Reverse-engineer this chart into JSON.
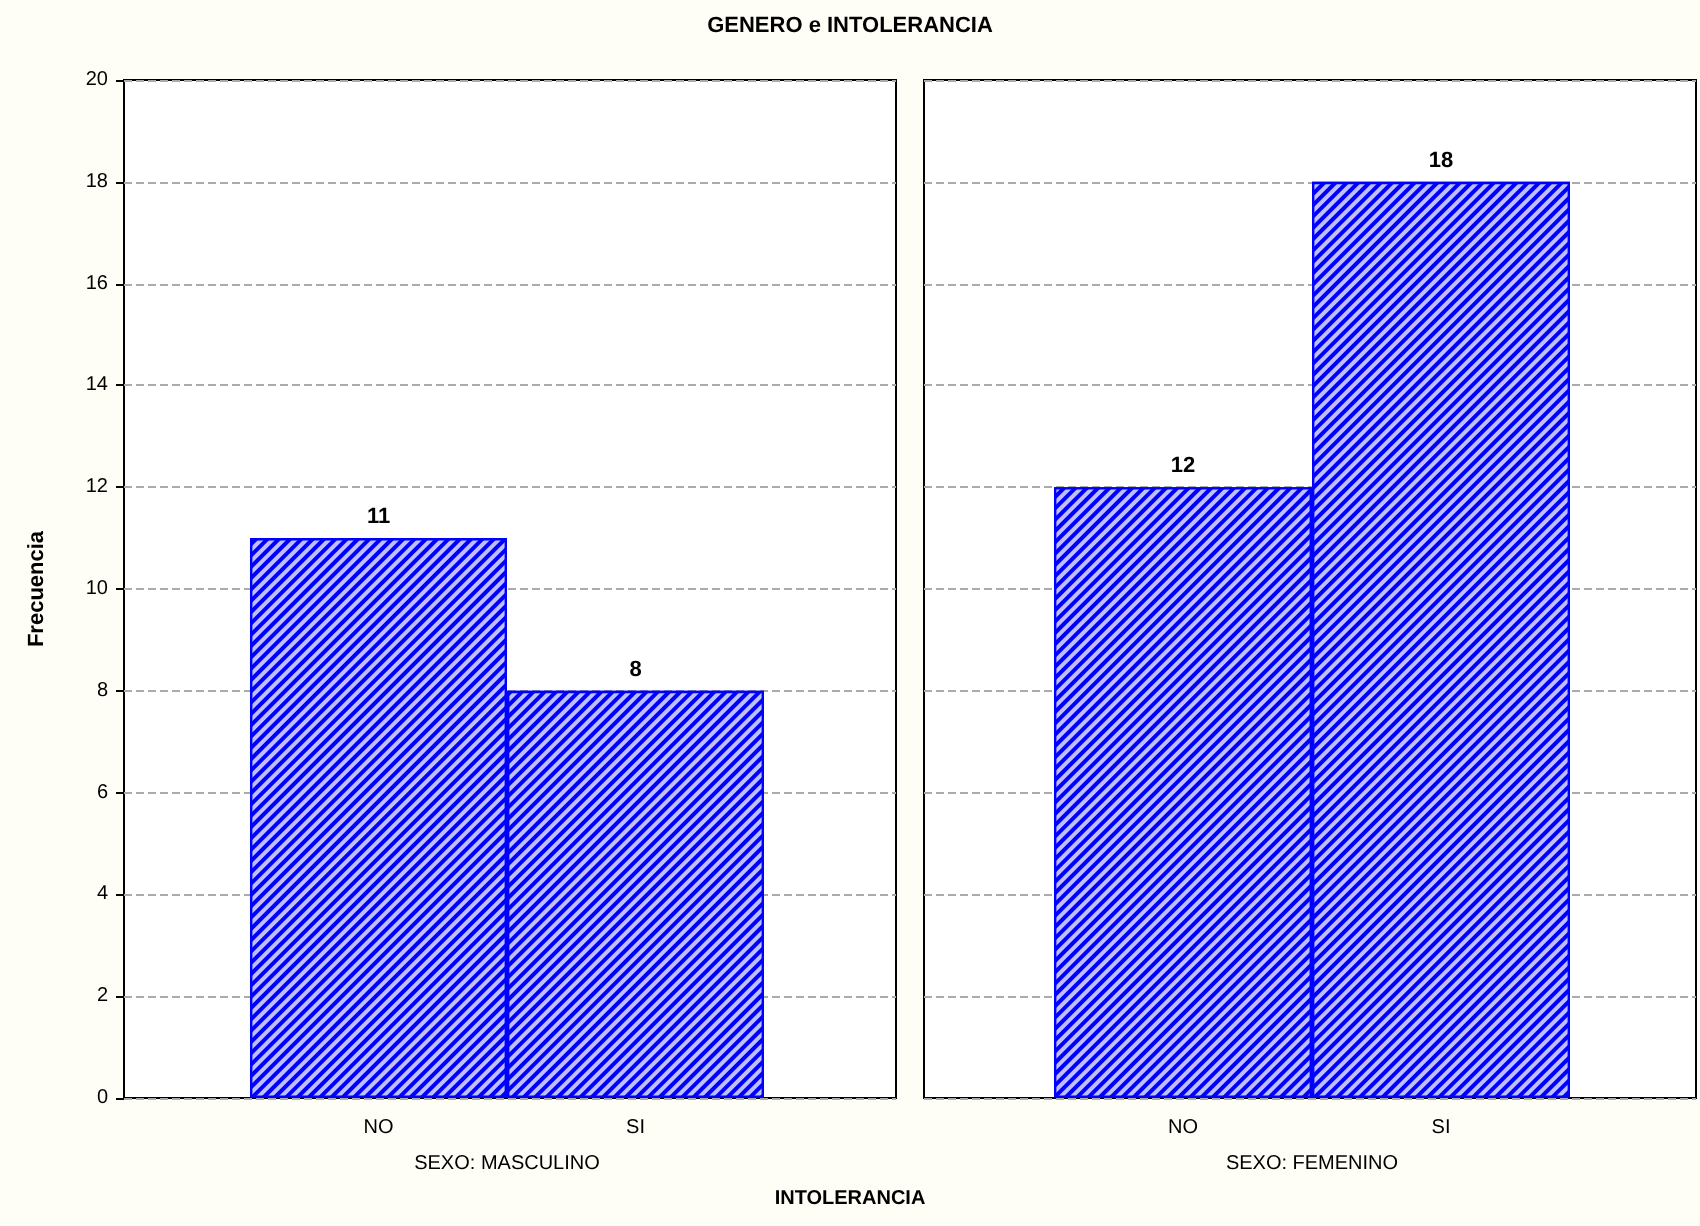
{
  "chart_data": [
    {
      "type": "bar",
      "title": "GENERO e INTOLERANCIA",
      "ylabel": "Frecuencia",
      "xlabel": "SEXO: MASCULINO",
      "categories": [
        "NO",
        "SI"
      ],
      "values": [
        11,
        8
      ],
      "color": "#0000ff",
      "ylim": [
        0,
        20
      ],
      "yticks": [
        0,
        2,
        4,
        6,
        8,
        10,
        12,
        14,
        16,
        18,
        20
      ],
      "grid": "y",
      "data_labels": true
    },
    {
      "type": "bar",
      "xlabel": "SEXO: FEMENINO",
      "annotations": [
        "INTOLERANCIA"
      ],
      "categories": [
        "NO",
        "SI"
      ],
      "values": [
        12,
        18
      ],
      "color": "#0000ff",
      "ylim": [
        0,
        20
      ],
      "yticks": [
        0,
        2,
        4,
        6,
        8,
        10,
        12,
        14,
        16,
        18,
        20
      ],
      "grid": "y",
      "data_labels": true,
      "tick_labels": "x"
    }
  ]
}
